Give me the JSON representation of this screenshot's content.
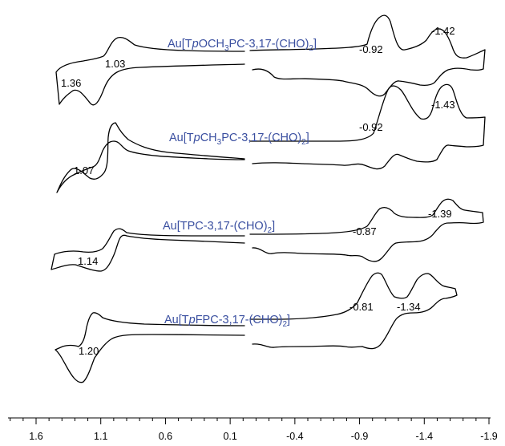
{
  "chart_data": {
    "type": "line",
    "title": "",
    "xlabel": "",
    "ylabel": "",
    "xlim": [
      1.6,
      -1.9
    ],
    "x_reversed": true,
    "x_ticks": [
      1.6,
      1.1,
      0.6,
      0.1,
      -0.4,
      -0.9,
      -1.4,
      -1.9
    ],
    "x_tick_labels": [
      "1.6",
      "1.1",
      "0.6",
      "0.1",
      "-0.4",
      "-0.9",
      "-1.4",
      "-1.9"
    ],
    "minor_ticks_per_major": 5,
    "y_axis_shown": false,
    "grid": false,
    "trace_color": "#000000",
    "label_color": "#3a4fa0",
    "series": [
      {
        "label_parts": [
          {
            "t": "Au[T"
          },
          {
            "t": "p",
            "style": "italic"
          },
          {
            "t": "OCH"
          },
          {
            "t": "3",
            "style": "sub"
          },
          {
            "t": "PC-3,17-(CHO)"
          },
          {
            "t": "2",
            "style": "sub"
          },
          {
            "t": "]"
          }
        ],
        "peaks": [
          {
            "text": "1.36",
            "x": 1.36
          },
          {
            "text": "1.03",
            "x": 1.03
          },
          {
            "text": "-0.92",
            "x": -0.92
          },
          {
            "text": "-1.42",
            "x": -1.42
          }
        ]
      },
      {
        "label_parts": [
          {
            "t": "Au[T"
          },
          {
            "t": "p",
            "style": "italic"
          },
          {
            "t": "CH"
          },
          {
            "t": "3",
            "style": "sub"
          },
          {
            "t": "PC-3,17-(CHO)"
          },
          {
            "t": "2",
            "style": "sub"
          },
          {
            "t": "]"
          }
        ],
        "peaks": [
          {
            "text": "1.07",
            "x": 1.07
          },
          {
            "text": "-0.92",
            "x": -0.92
          },
          {
            "text": "-1.43",
            "x": -1.43
          }
        ]
      },
      {
        "label_parts": [
          {
            "t": "Au[TPC-3,17-(CHO)"
          },
          {
            "t": "2",
            "style": "sub"
          },
          {
            "t": "]"
          }
        ],
        "peaks": [
          {
            "text": "1.14",
            "x": 1.14
          },
          {
            "text": "-0.87",
            "x": -0.87
          },
          {
            "text": "-1.39",
            "x": -1.39
          }
        ]
      },
      {
        "label_parts": [
          {
            "t": "Au[T"
          },
          {
            "t": "p",
            "style": "italic"
          },
          {
            "t": "FPC-3,17-(CHO)"
          },
          {
            "t": "2",
            "style": "sub"
          },
          {
            "t": "]"
          }
        ],
        "peaks": [
          {
            "text": "1.20",
            "x": 1.2
          },
          {
            "text": "-0.81",
            "x": -0.81
          },
          {
            "text": "-1.34",
            "x": -1.34
          }
        ]
      }
    ]
  }
}
